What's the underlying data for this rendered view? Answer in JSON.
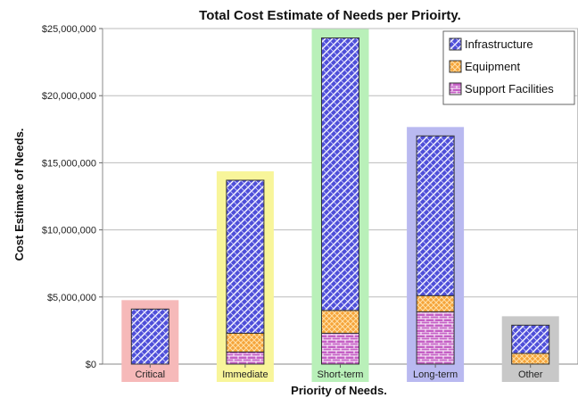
{
  "chart_data": {
    "type": "bar",
    "stacked": true,
    "title": "Total Cost Estimate of Needs per Prioirty.",
    "xlabel": "Priority of Needs.",
    "ylabel": "Cost Estimate of Needs.",
    "ylim": [
      0,
      25000000
    ],
    "yticks": [
      0,
      5000000,
      10000000,
      15000000,
      20000000,
      25000000
    ],
    "ytick_labels": [
      "$0",
      "$5,000,000",
      "$10,000,000",
      "$15,000,000",
      "$20,000,000",
      "$25,000,000"
    ],
    "categories": [
      "Critical",
      "Immediate",
      "Short-term",
      "Long-term",
      "Other"
    ],
    "category_highlight_colors": [
      "#f6b9b9",
      "#f8f59a",
      "#b9f0b9",
      "#b9b9f0",
      "#c8c8c8"
    ],
    "series": [
      {
        "name": "Support Facilities",
        "color": "#cc66cc",
        "pattern": "brick",
        "values": [
          0,
          900000,
          2300000,
          3900000,
          0
        ]
      },
      {
        "name": "Equipment",
        "color": "#ffaa33",
        "pattern": "crosshatch",
        "values": [
          0,
          1400000,
          1700000,
          1200000,
          800000
        ]
      },
      {
        "name": "Infrastructure",
        "color": "#4444dd",
        "pattern": "weave",
        "values": [
          4100000,
          11400000,
          20300000,
          11900000,
          2100000
        ]
      }
    ],
    "legend": {
      "position": "top-right",
      "order": [
        "Infrastructure",
        "Equipment",
        "Support Facilities"
      ]
    },
    "grid": {
      "horizontal": true,
      "vertical": false
    }
  }
}
